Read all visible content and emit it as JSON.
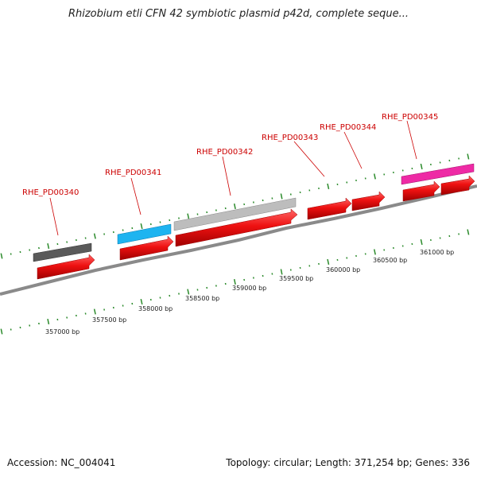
{
  "title": "Rhizobium etli CFN 42 symbiotic plasmid p42d, complete seque...",
  "footer": {
    "accession": "Accession: NC_004041",
    "summary": "Topology: circular; Length: 371,254 bp; Genes: 336"
  },
  "genes": [
    {
      "label": "RHE_PD00340",
      "color": "#5a5a5a"
    },
    {
      "label": "RHE_PD00341",
      "color": "#1eb4f0"
    },
    {
      "label": "RHE_PD00342",
      "color": "#bdbdbd"
    },
    {
      "label": "RHE_PD00343",
      "color": ""
    },
    {
      "label": "RHE_PD00344",
      "color": ""
    },
    {
      "label": "RHE_PD00345",
      "color": "#ee2aa5"
    }
  ],
  "scale_labels": [
    "357000 bp",
    "357500 bp",
    "358000 bp",
    "358500 bp",
    "359000 bp",
    "359500 bp",
    "360000 bp",
    "360500 bp",
    "361000 bp"
  ],
  "colors": {
    "cds": "#ee1111",
    "backbone": "#8a8a8a",
    "ticks": "#2a8a2a",
    "label": "#cc0000"
  }
}
